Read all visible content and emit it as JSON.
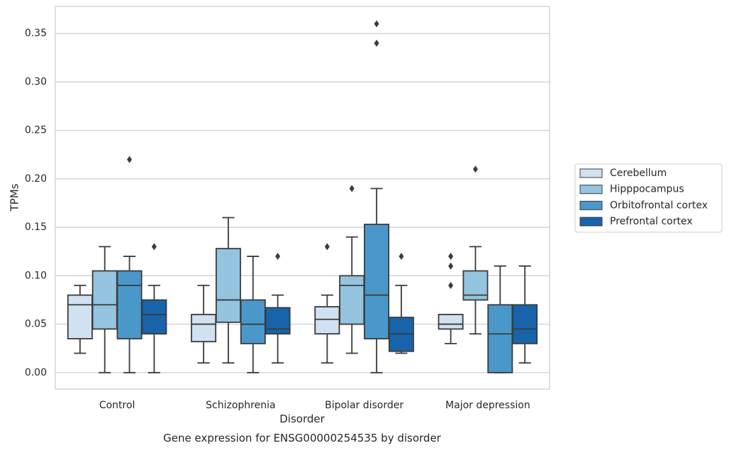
{
  "caption": "Gene expression for ENSG00000254535 by disorder",
  "chart_data": {
    "type": "boxplot",
    "title": "",
    "xlabel": "Disorder",
    "ylabel": "TPMs",
    "ylim": [
      -0.017,
      0.378
    ],
    "yticks": [
      0.0,
      0.05,
      0.1,
      0.15,
      0.2,
      0.25,
      0.3,
      0.35
    ],
    "ytick_labels": [
      "0.00",
      "0.05",
      "0.10",
      "0.15",
      "0.20",
      "0.25",
      "0.30",
      "0.35"
    ],
    "grid": true,
    "legend_position": "right",
    "categories": [
      "Control",
      "Schizophrenia",
      "Bipolar disorder",
      "Major depression"
    ],
    "series": [
      {
        "name": "Cerebellum",
        "color": "#d0e1f2",
        "boxes": [
          {
            "whisker_low": 0.02,
            "q1": 0.035,
            "median": 0.07,
            "q3": 0.08,
            "whisker_high": 0.09,
            "outliers": []
          },
          {
            "whisker_low": 0.01,
            "q1": 0.032,
            "median": 0.05,
            "q3": 0.06,
            "whisker_high": 0.09,
            "outliers": []
          },
          {
            "whisker_low": 0.01,
            "q1": 0.04,
            "median": 0.055,
            "q3": 0.068,
            "whisker_high": 0.08,
            "outliers": [
              0.13
            ]
          },
          {
            "whisker_low": 0.03,
            "q1": 0.045,
            "median": 0.05,
            "q3": 0.06,
            "whisker_high": 0.06,
            "outliers": [
              0.09,
              0.11,
              0.12
            ]
          }
        ]
      },
      {
        "name": "Hipppocampus",
        "color": "#94c4df",
        "boxes": [
          {
            "whisker_low": 0.0,
            "q1": 0.045,
            "median": 0.07,
            "q3": 0.105,
            "whisker_high": 0.13,
            "outliers": []
          },
          {
            "whisker_low": 0.01,
            "q1": 0.052,
            "median": 0.075,
            "q3": 0.128,
            "whisker_high": 0.16,
            "outliers": []
          },
          {
            "whisker_low": 0.02,
            "q1": 0.05,
            "median": 0.09,
            "q3": 0.1,
            "whisker_high": 0.14,
            "outliers": [
              0.19
            ]
          },
          {
            "whisker_low": 0.04,
            "q1": 0.075,
            "median": 0.08,
            "q3": 0.105,
            "whisker_high": 0.13,
            "outliers": [
              0.21
            ]
          }
        ]
      },
      {
        "name": "Orbitofrontal cortex",
        "color": "#4a98c9",
        "boxes": [
          {
            "whisker_low": 0.0,
            "q1": 0.035,
            "median": 0.09,
            "q3": 0.105,
            "whisker_high": 0.12,
            "outliers": [
              0.22
            ]
          },
          {
            "whisker_low": 0.0,
            "q1": 0.03,
            "median": 0.05,
            "q3": 0.075,
            "whisker_high": 0.12,
            "outliers": []
          },
          {
            "whisker_low": 0.0,
            "q1": 0.035,
            "median": 0.08,
            "q3": 0.153,
            "whisker_high": 0.19,
            "outliers": [
              0.34,
              0.36
            ]
          },
          {
            "whisker_low": 0.0,
            "q1": 0.0,
            "median": 0.04,
            "q3": 0.07,
            "whisker_high": 0.11,
            "outliers": []
          }
        ]
      },
      {
        "name": "Prefrontal cortex",
        "color": "#1764ab",
        "boxes": [
          {
            "whisker_low": 0.0,
            "q1": 0.04,
            "median": 0.06,
            "q3": 0.075,
            "whisker_high": 0.09,
            "outliers": [
              0.13
            ]
          },
          {
            "whisker_low": 0.01,
            "q1": 0.04,
            "median": 0.045,
            "q3": 0.067,
            "whisker_high": 0.08,
            "outliers": [
              0.12
            ]
          },
          {
            "whisker_low": 0.02,
            "q1": 0.022,
            "median": 0.04,
            "q3": 0.057,
            "whisker_high": 0.09,
            "outliers": [
              0.12
            ]
          },
          {
            "whisker_low": 0.01,
            "q1": 0.03,
            "median": 0.045,
            "q3": 0.07,
            "whisker_high": 0.11,
            "outliers": []
          }
        ]
      }
    ]
  }
}
